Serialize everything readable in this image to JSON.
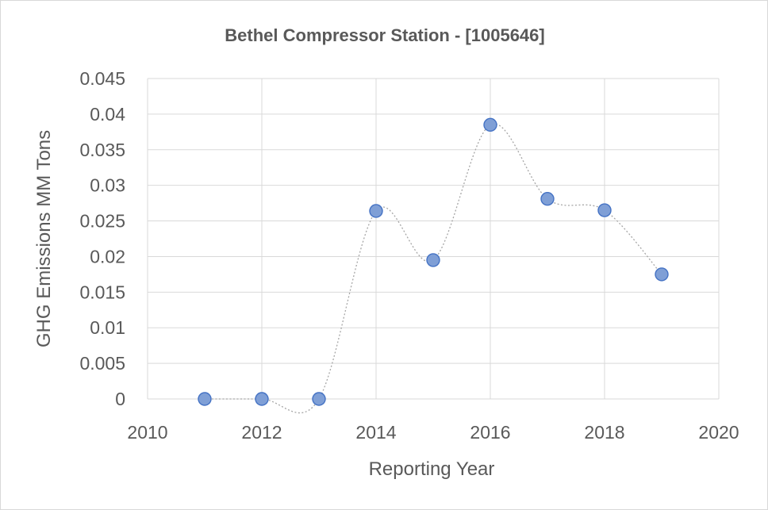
{
  "chart_data": {
    "type": "scatter",
    "title": "Bethel Compressor Station - [1005646]",
    "xlabel": "Reporting Year",
    "ylabel": "GHG Emissions MM Tons",
    "xlim": [
      2010,
      2020
    ],
    "ylim": [
      0,
      0.045
    ],
    "x_ticks": [
      "2010",
      "2012",
      "2014",
      "2016",
      "2018",
      "2020"
    ],
    "y_ticks": [
      "0",
      "0.005",
      "0.01",
      "0.015",
      "0.02",
      "0.025",
      "0.03",
      "0.035",
      "0.04",
      "0.045"
    ],
    "grid": true,
    "smoothed_line": true,
    "marker_color": "#7f9fd6",
    "marker_edge_color": "#4472c4",
    "line_color": "#a6a6a6",
    "series": [
      {
        "x": [
          2011,
          2012,
          2013,
          2014,
          2015,
          2016,
          2017,
          2018,
          2019
        ],
        "y": [
          0,
          0,
          0,
          0.0264,
          0.0195,
          0.0385,
          0.0281,
          0.0265,
          0.0175
        ]
      }
    ]
  }
}
